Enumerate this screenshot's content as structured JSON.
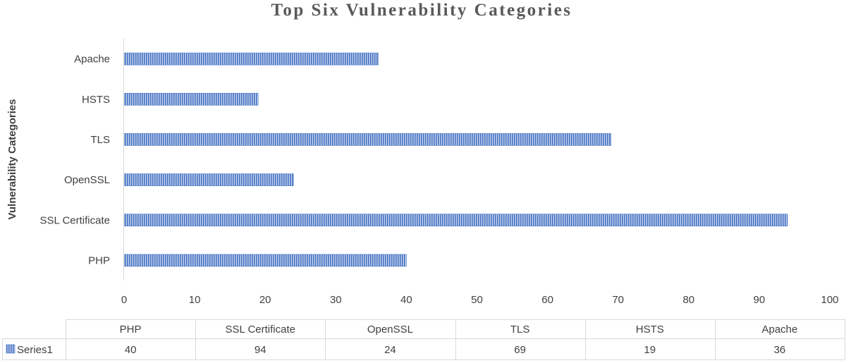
{
  "chart_data": {
    "type": "bar",
    "orientation": "horizontal",
    "title": "Top Six Vulnerability  Categories",
    "ylabel": "Vulnerability Categories",
    "xlabel": "",
    "categories": [
      "PHP",
      "SSL Certificate",
      "OpenSSL",
      "TLS",
      "HSTS",
      "Apache"
    ],
    "series": [
      {
        "name": "Series1",
        "values": [
          40,
          94,
          24,
          69,
          19,
          36
        ],
        "color": "#4472c4"
      }
    ],
    "xlim": [
      0,
      100
    ],
    "xticks": [
      "0",
      "10",
      "20",
      "30",
      "40",
      "50",
      "60",
      "70",
      "80",
      "90",
      "100"
    ],
    "grid": false,
    "legend": "data-table",
    "data_table": {
      "header": [
        "PHP",
        "SSL Certificate",
        "OpenSSL",
        "TLS",
        "HSTS",
        "Apache"
      ],
      "row_label": "Series1",
      "row_values": [
        "40",
        "94",
        "24",
        "69",
        "19",
        "36"
      ]
    }
  }
}
